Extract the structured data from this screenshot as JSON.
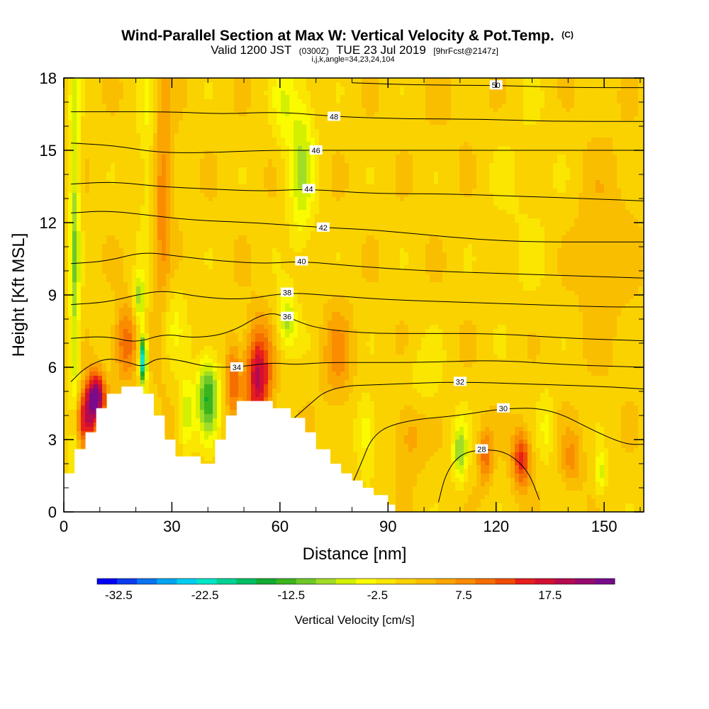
{
  "title": {
    "main": "Wind-Parallel Section at Max W: Vertical Velocity & Pot.Temp.",
    "main_tag": "(C)",
    "valid_a": "Valid 1200 JST",
    "valid_b": "(0300Z)",
    "valid_c": "TUE 23 Jul 2019",
    "valid_d": "[9hrFcst@2147z]",
    "params": "i,j,k,angle=34,23,24,104"
  },
  "chart_data": {
    "type": "heatmap",
    "xlabel": "Distance [nm]",
    "ylabel": "Height [Kft MSL]",
    "xlim": [
      0,
      161
    ],
    "ylim": [
      0,
      18
    ],
    "xticks": [
      0,
      30,
      60,
      90,
      120,
      150
    ],
    "yticks": [
      0,
      3,
      6,
      9,
      12,
      15,
      18
    ],
    "colorbar": {
      "label": "Vertical Velocity [cm/s]",
      "tick_labels": [
        "-32.5",
        "-22.5",
        "-12.5",
        "-2.5",
        "7.5",
        "17.5"
      ],
      "tick_values": [
        -32.5,
        -22.5,
        -12.5,
        -2.5,
        7.5,
        17.5
      ],
      "min": -35,
      "max": 25,
      "colors": [
        "#0000f5",
        "#0a3cf0",
        "#0a73f0",
        "#00a5f0",
        "#00cdf0",
        "#00e6c8",
        "#00d296",
        "#00be64",
        "#14aa32",
        "#3cb41e",
        "#6ec828",
        "#a0dc28",
        "#d2f000",
        "#fafa00",
        "#fae600",
        "#fad200",
        "#fabe00",
        "#faa500",
        "#fa8c00",
        "#f56e00",
        "#f04b00",
        "#e61e1e",
        "#d20f32",
        "#b40a50",
        "#960a6e",
        "#780a8c"
      ]
    },
    "terrain": [
      [
        0,
        1.6
      ],
      [
        3,
        1.6
      ],
      [
        3,
        2.6
      ],
      [
        6,
        2.6
      ],
      [
        6,
        3.3
      ],
      [
        9,
        3.3
      ],
      [
        9,
        4.3
      ],
      [
        12,
        4.3
      ],
      [
        12,
        4.9
      ],
      [
        16,
        4.9
      ],
      [
        16,
        5.2
      ],
      [
        22,
        5.2
      ],
      [
        22,
        4.9
      ],
      [
        25,
        4.9
      ],
      [
        25,
        4.0
      ],
      [
        28,
        4.0
      ],
      [
        28,
        3.0
      ],
      [
        31,
        3.0
      ],
      [
        31,
        2.3
      ],
      [
        38,
        2.3
      ],
      [
        38,
        2.0
      ],
      [
        42,
        2.0
      ],
      [
        42,
        3.0
      ],
      [
        45,
        3.0
      ],
      [
        45,
        4.0
      ],
      [
        48,
        4.0
      ],
      [
        48,
        4.6
      ],
      [
        58,
        4.6
      ],
      [
        58,
        4.3
      ],
      [
        63,
        4.3
      ],
      [
        63,
        3.9
      ],
      [
        67,
        3.9
      ],
      [
        67,
        3.3
      ],
      [
        70,
        3.3
      ],
      [
        70,
        2.6
      ],
      [
        74,
        2.6
      ],
      [
        74,
        2.0
      ],
      [
        77,
        2.0
      ],
      [
        77,
        1.6
      ],
      [
        80,
        1.6
      ],
      [
        80,
        1.3
      ],
      [
        83,
        1.3
      ],
      [
        83,
        1.0
      ],
      [
        86,
        1.0
      ],
      [
        86,
        0.7
      ],
      [
        90,
        0.7
      ],
      [
        90,
        0.3
      ],
      [
        92,
        0.3
      ]
    ],
    "theta_contours": [
      {
        "label": "28",
        "points": [
          [
            104,
            0.4
          ],
          [
            106,
            1.6
          ],
          [
            110,
            2.4
          ],
          [
            116,
            2.6
          ],
          [
            123,
            2.5
          ],
          [
            129,
            1.7
          ],
          [
            132,
            0.5
          ]
        ]
      },
      {
        "label": "30",
        "points": [
          [
            78,
            0.5
          ],
          [
            82,
            1.8
          ],
          [
            86,
            3.3
          ],
          [
            95,
            3.8
          ],
          [
            110,
            4.0
          ],
          [
            122,
            4.3
          ],
          [
            135,
            4.3
          ],
          [
            148,
            3.3
          ],
          [
            156,
            2.8
          ],
          [
            161,
            2.8
          ]
        ]
      },
      {
        "label": "32",
        "points": [
          [
            64,
            3.9
          ],
          [
            67,
            4.3
          ],
          [
            74,
            5.2
          ],
          [
            90,
            5.3
          ],
          [
            110,
            5.4
          ],
          [
            130,
            5.3
          ],
          [
            150,
            5.2
          ],
          [
            161,
            5.1
          ]
        ]
      },
      {
        "label": "34",
        "points": [
          [
            2,
            5.4
          ],
          [
            6,
            6.0
          ],
          [
            12,
            6.4
          ],
          [
            18,
            6.2
          ],
          [
            22,
            6.0
          ],
          [
            26,
            6.4
          ],
          [
            32,
            6.3
          ],
          [
            40,
            6.0
          ],
          [
            48,
            6.0
          ],
          [
            58,
            6.2
          ],
          [
            64,
            6.1
          ],
          [
            72,
            6.2
          ],
          [
            85,
            6.2
          ],
          [
            100,
            6.2
          ],
          [
            120,
            6.3
          ],
          [
            140,
            6.1
          ],
          [
            161,
            6.0
          ]
        ]
      },
      {
        "label": "36",
        "points": [
          [
            2,
            7.2
          ],
          [
            12,
            7.3
          ],
          [
            20,
            7.0
          ],
          [
            28,
            7.4
          ],
          [
            36,
            7.2
          ],
          [
            46,
            7.4
          ],
          [
            56,
            8.3
          ],
          [
            62,
            8.1
          ],
          [
            70,
            7.6
          ],
          [
            85,
            7.4
          ],
          [
            100,
            7.4
          ],
          [
            120,
            7.4
          ],
          [
            140,
            7.2
          ],
          [
            161,
            7.1
          ]
        ]
      },
      {
        "label": "38",
        "points": [
          [
            2,
            8.6
          ],
          [
            12,
            8.7
          ],
          [
            20,
            9.0
          ],
          [
            28,
            9.2
          ],
          [
            38,
            8.9
          ],
          [
            50,
            8.8
          ],
          [
            62,
            9.1
          ],
          [
            72,
            9.0
          ],
          [
            90,
            8.8
          ],
          [
            110,
            8.7
          ],
          [
            130,
            8.6
          ],
          [
            150,
            8.5
          ],
          [
            161,
            8.5
          ]
        ]
      },
      {
        "label": "40",
        "points": [
          [
            2,
            10.3
          ],
          [
            12,
            10.4
          ],
          [
            22,
            10.8
          ],
          [
            32,
            10.6
          ],
          [
            44,
            10.4
          ],
          [
            56,
            10.3
          ],
          [
            66,
            10.4
          ],
          [
            80,
            10.2
          ],
          [
            100,
            10.0
          ],
          [
            120,
            9.9
          ],
          [
            140,
            9.8
          ],
          [
            161,
            9.7
          ]
        ]
      },
      {
        "label": "42",
        "points": [
          [
            2,
            12.4
          ],
          [
            12,
            12.5
          ],
          [
            24,
            12.3
          ],
          [
            36,
            12.1
          ],
          [
            52,
            12.0
          ],
          [
            62,
            11.9
          ],
          [
            72,
            11.8
          ],
          [
            86,
            11.7
          ],
          [
            100,
            11.5
          ],
          [
            115,
            11.3
          ],
          [
            130,
            11.2
          ],
          [
            145,
            11.2
          ],
          [
            161,
            11.2
          ]
        ]
      },
      {
        "label": "44",
        "points": [
          [
            2,
            13.6
          ],
          [
            14,
            13.7
          ],
          [
            26,
            13.5
          ],
          [
            40,
            13.4
          ],
          [
            55,
            13.3
          ],
          [
            68,
            13.4
          ],
          [
            85,
            13.2
          ],
          [
            105,
            13.2
          ],
          [
            125,
            13.1
          ],
          [
            145,
            13.0
          ],
          [
            161,
            12.9
          ]
        ]
      },
      {
        "label": "46",
        "points": [
          [
            2,
            15.3
          ],
          [
            14,
            15.2
          ],
          [
            26,
            14.9
          ],
          [
            40,
            14.9
          ],
          [
            55,
            15.0
          ],
          [
            70,
            15.0
          ],
          [
            90,
            15.0
          ],
          [
            110,
            15.0
          ],
          [
            130,
            15.0
          ],
          [
            150,
            15.0
          ],
          [
            161,
            15.0
          ]
        ]
      },
      {
        "label": "48",
        "points": [
          [
            2,
            16.6
          ],
          [
            16,
            16.6
          ],
          [
            30,
            16.6
          ],
          [
            44,
            16.5
          ],
          [
            60,
            16.6
          ],
          [
            75,
            16.4
          ],
          [
            95,
            16.3
          ],
          [
            115,
            16.3
          ],
          [
            135,
            16.2
          ],
          [
            161,
            16.2
          ]
        ]
      },
      {
        "label": "50",
        "points": [
          [
            80,
            17.8
          ],
          [
            100,
            17.7
          ],
          [
            120,
            17.7
          ],
          [
            140,
            17.6
          ],
          [
            161,
            17.6
          ]
        ]
      }
    ]
  }
}
